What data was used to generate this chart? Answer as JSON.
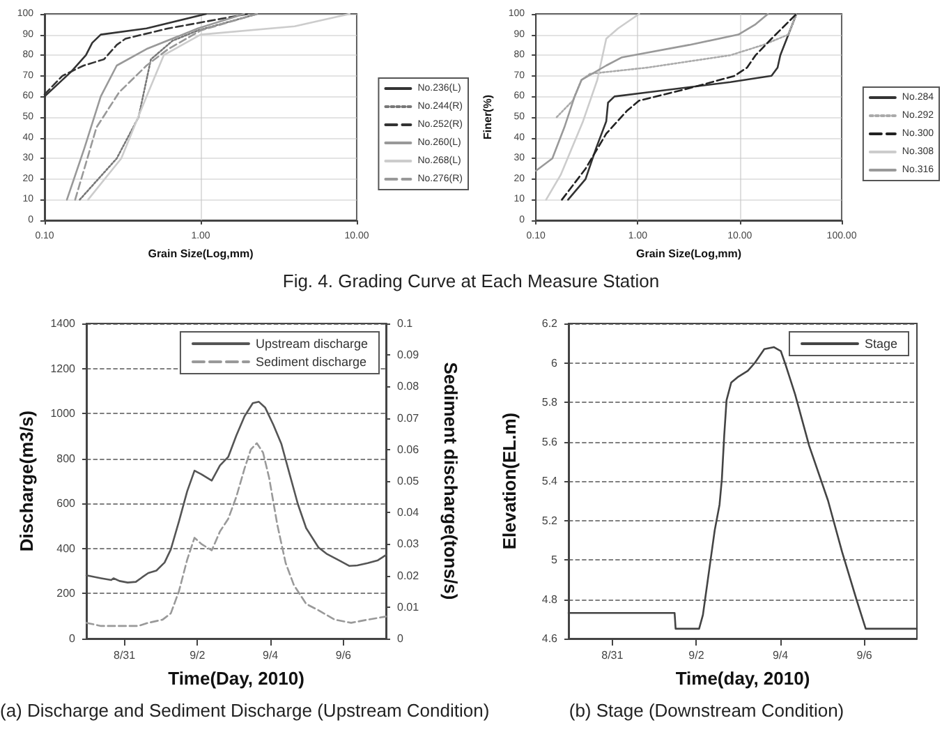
{
  "chart_data": [
    {
      "type": "line",
      "xlabel": "Grain Size(Log,mm)",
      "log": "x",
      "xlim": [
        0.1,
        10
      ],
      "xticks": [
        {
          "value": 0.1,
          "label": "0.10"
        },
        {
          "value": 1,
          "label": "1.00"
        },
        {
          "value": 10,
          "label": "10.00"
        }
      ],
      "ylim": [
        0,
        100
      ],
      "yticks": [
        0,
        10,
        20,
        30,
        40,
        50,
        60,
        70,
        80,
        90,
        100
      ],
      "grid": true,
      "legend": "right",
      "marker": "none",
      "annotations": [
        "Fig. 4. Grading Curve at Each Measure Station"
      ],
      "series": [
        {
          "name": "No.236(L)",
          "color": "#333333",
          "line_style": "solid",
          "x": [
            0.1,
            0.148,
            0.184,
            0.202,
            0.229,
            0.45,
            1.08
          ],
          "values": [
            60,
            72,
            80,
            86,
            90,
            93,
            100
          ]
        },
        {
          "name": "No.244(R)",
          "color": "#777777",
          "line_style": "dotted",
          "x": [
            0.168,
            0.29,
            0.4,
            0.48,
            0.66,
            0.96,
            2.3
          ],
          "values": [
            10,
            30,
            50,
            78,
            87,
            92,
            100
          ]
        },
        {
          "name": "No.252(R)",
          "color": "#333333",
          "line_style": "dashed",
          "x": [
            0.1,
            0.13,
            0.178,
            0.24,
            0.29,
            0.33,
            0.62,
            2
          ],
          "values": [
            61,
            70,
            75,
            78,
            85,
            88,
            93,
            100
          ]
        },
        {
          "name": "No.260(L)",
          "color": "#999999",
          "line_style": "solid",
          "x": [
            0.139,
            0.18,
            0.229,
            0.29,
            0.45,
            0.96,
            1.9
          ],
          "values": [
            10,
            35,
            60,
            75,
            83,
            93,
            100
          ]
        },
        {
          "name": "No.268(L)",
          "color": "#cccccc",
          "line_style": "solid",
          "x": [
            0.19,
            0.31,
            0.45,
            0.58,
            1,
            4,
            9
          ],
          "values": [
            10,
            30,
            60,
            80,
            90,
            94,
            100
          ]
        },
        {
          "name": "No.276(R)",
          "color": "#999999",
          "line_style": "dashed",
          "x": [
            0.157,
            0.215,
            0.3,
            0.45,
            0.62,
            1,
            2.3
          ],
          "values": [
            10,
            45,
            62,
            75,
            83,
            92,
            100
          ]
        }
      ]
    },
    {
      "type": "line",
      "xlabel": "Grain Size(Log,mm)",
      "ylabel": "Finer(%)",
      "log": "x",
      "xlim": [
        0.1,
        100
      ],
      "xticks": [
        {
          "value": 0.1,
          "label": "0.10"
        },
        {
          "value": 1,
          "label": "1.00"
        },
        {
          "value": 10,
          "label": "10.00"
        },
        {
          "value": 100,
          "label": "100.00"
        }
      ],
      "ylim": [
        0,
        100
      ],
      "yticks": [
        0,
        10,
        20,
        30,
        40,
        50,
        60,
        70,
        80,
        90,
        100
      ],
      "grid": true,
      "legend": "right",
      "marker": "none",
      "series": [
        {
          "name": "No.284",
          "color": "#333333",
          "line_style": "solid",
          "x": [
            0.207,
            0.307,
            0.39,
            0.49,
            0.51,
            0.59,
            1.24,
            8.1,
            20.5,
            23.5,
            25,
            36
          ],
          "values": [
            10,
            20,
            35,
            48,
            57,
            60,
            62,
            67,
            70,
            74,
            80,
            100
          ]
        },
        {
          "name": "No.292",
          "color": "#aaaaaa",
          "line_style": "dotted",
          "x": [
            0.16,
            0.23,
            0.28,
            0.34,
            1.24,
            8.1,
            17,
            30,
            36
          ],
          "values": [
            50,
            58,
            68,
            71,
            74,
            80,
            85,
            90,
            100
          ]
        },
        {
          "name": "No.300",
          "color": "#222222",
          "line_style": "dashed",
          "x": [
            0.18,
            0.307,
            0.49,
            0.78,
            1.03,
            3.2,
            8.9,
            11.8,
            14.3,
            20.5,
            36
          ],
          "values": [
            10,
            25,
            42,
            53,
            58,
            64,
            70,
            74,
            80,
            88,
            100
          ]
        },
        {
          "name": "No.308",
          "color": "#cccccc",
          "line_style": "solid",
          "x": [
            0.126,
            0.175,
            0.29,
            0.4,
            0.49,
            0.64,
            1.03
          ],
          "values": [
            10,
            22,
            48,
            68,
            88,
            93,
            100
          ]
        },
        {
          "name": "No.316",
          "color": "#999999",
          "line_style": "solid",
          "x": [
            0.1,
            0.145,
            0.19,
            0.24,
            0.28,
            0.49,
            0.7,
            3.2,
            9.7,
            14.3,
            18.9
          ],
          "values": [
            24,
            30,
            45,
            60,
            68,
            75,
            79,
            85,
            90,
            95,
            100
          ]
        }
      ]
    },
    {
      "type": "line",
      "xlabel": "Time(Day, 2010)",
      "ylabel": "Discharge(m3/s)",
      "y2label": "Sediment discharge(tons/s)",
      "xlim": [
        "2010-08-29T23:00",
        "2010-09-07T04:00"
      ],
      "xticks": [
        {
          "value": "2010-08-31",
          "label": "8/31"
        },
        {
          "value": "2010-09-02",
          "label": "9/2"
        },
        {
          "value": "2010-09-04",
          "label": "9/4"
        },
        {
          "value": "2010-09-06",
          "label": "9/6"
        }
      ],
      "ylim": [
        0,
        1400
      ],
      "yticks": [
        0,
        200,
        400,
        600,
        800,
        1000,
        1200,
        1400
      ],
      "y2lim": [
        0,
        0.1
      ],
      "y2ticks": [
        0,
        0.01,
        0.02,
        0.03,
        0.04,
        0.05,
        0.06,
        0.07,
        0.08,
        0.09,
        0.1
      ],
      "grid": "y",
      "legend": "top right",
      "marker": "none",
      "annotations": [
        "(a) Discharge and Sediment Discharge (Upstream Condition)"
      ],
      "series": [
        {
          "name": "Upstream discharge",
          "color": "#555555",
          "line_style": "solid",
          "x": [
            "2010-08-29T23:00",
            "2010-08-30T08:40",
            "2010-08-30T15:20",
            "2010-08-30T16:50",
            "2010-08-30T20:45",
            "2010-08-31T02:10",
            "2010-08-31T07:30",
            "2010-08-31T11:35",
            "2010-08-31T15:40",
            "2010-08-31T21:00",
            "2010-09-01T02:25",
            "2010-09-01T06:30",
            "2010-09-01T11:50",
            "2010-09-01T17:15",
            "2010-09-01T22:05",
            "2010-09-02T02:40",
            "2010-09-02T09:25",
            "2010-09-02T14:50",
            "2010-09-02T20:15",
            "2010-09-03T01:35",
            "2010-09-03T07:00",
            "2010-09-03T12:25",
            "2010-09-03T16:25",
            "2010-09-03T20:30",
            "2010-09-04T01:55",
            "2010-09-04T07:15",
            "2010-09-04T12:40",
            "2010-09-04T18:05",
            "2010-09-04T23:30",
            "2010-09-05T07:35",
            "2010-09-05T12:55",
            "2010-09-05T21:00",
            "2010-09-06T03:45",
            "2010-09-06T09:10",
            "2010-09-06T15:55",
            "2010-09-06T22:40",
            "2010-09-07T04:00"
          ],
          "values": [
            281,
            268,
            260,
            268,
            256,
            249,
            252,
            272,
            291,
            302,
            338,
            396,
            520,
            654,
            746,
            730,
            702,
            769,
            807,
            902,
            988,
            1046,
            1052,
            1027,
            950,
            864,
            730,
            597,
            491,
            405,
            377,
            348,
            323,
            325,
            335,
            348,
            371
          ]
        },
        {
          "name": "Sediment discharge",
          "color": "#999999",
          "line_style": "dashed",
          "axis": "y2",
          "x": [
            "2010-08-29T23:00",
            "2010-08-30T08:40",
            "2010-08-30T22:05",
            "2010-08-31T08:55",
            "2010-08-31T15:40",
            "2010-09-01T01:05",
            "2010-09-01T06:30",
            "2010-09-01T11:50",
            "2010-09-01T17:15",
            "2010-09-01T22:05",
            "2010-09-02T02:40",
            "2010-09-02T09:25",
            "2010-09-02T14:50",
            "2010-09-02T20:15",
            "2010-09-03T01:35",
            "2010-09-03T07:00",
            "2010-09-03T11:05",
            "2010-09-03T15:05",
            "2010-09-03T19:10",
            "2010-09-03T23:10",
            "2010-09-04T04:35",
            "2010-09-04T10:00",
            "2010-09-04T15:25",
            "2010-09-04T23:30",
            "2010-09-05T07:35",
            "2010-09-05T18:20",
            "2010-09-06T05:05",
            "2010-09-06T15:55",
            "2010-09-07T04:00"
          ],
          "values": [
            0.005,
            0.004,
            0.004,
            0.004,
            0.005,
            0.006,
            0.008,
            0.015,
            0.025,
            0.032,
            0.03,
            0.028,
            0.034,
            0.038,
            0.045,
            0.054,
            0.06,
            0.062,
            0.059,
            0.051,
            0.036,
            0.024,
            0.017,
            0.011,
            0.009,
            0.006,
            0.005,
            0.006,
            0.007
          ]
        }
      ]
    },
    {
      "type": "line",
      "xlabel": "Time(day, 2010)",
      "ylabel": "Elevation(EL.m)",
      "xlim": [
        "2010-08-29T23:00",
        "2010-09-07T06:00"
      ],
      "xticks": [
        {
          "value": "2010-08-31",
          "label": "8/31"
        },
        {
          "value": "2010-09-02",
          "label": "9/2"
        },
        {
          "value": "2010-09-04",
          "label": "9/4"
        },
        {
          "value": "2010-09-06",
          "label": "9/6"
        }
      ],
      "ylim": [
        4.6,
        6.2
      ],
      "yticks": [
        4.6,
        4.8,
        5,
        5.2,
        5.4,
        5.6,
        5.8,
        6,
        6.2
      ],
      "grid": "y",
      "legend": "top right",
      "marker": "none",
      "annotations": [
        "(b) Stage (Downstream Condition)"
      ],
      "series": [
        {
          "name": "Stage",
          "color": "#444444",
          "line_style": "solid",
          "x": [
            "2010-08-29T23:00",
            "2010-09-01T11:35",
            "2010-09-01T12:10",
            "2010-09-02T01:35",
            "2010-09-02T03:45",
            "2010-09-02T07:50",
            "2010-09-02T10:30",
            "2010-09-02T13:15",
            "2010-09-02T14:35",
            "2010-09-02T15:55",
            "2010-09-02T17:15",
            "2010-09-02T19:55",
            "2010-09-03T00:00",
            "2010-09-03T05:25",
            "2010-09-03T09:25",
            "2010-09-03T14:50",
            "2010-09-03T20:15",
            "2010-09-04T00:15",
            "2010-09-04T03:00",
            "2010-09-04T08:25",
            "2010-09-04T16:25",
            "2010-09-05T03:15",
            "2010-09-05T11:15",
            "2010-09-05T19:25",
            "2010-09-06T00:45",
            "2010-09-07T06:00"
          ],
          "values": [
            4.73,
            4.73,
            4.65,
            4.65,
            4.72,
            4.98,
            5.15,
            5.28,
            5.41,
            5.63,
            5.81,
            5.9,
            5.93,
            5.96,
            6.0,
            6.07,
            6.08,
            6.06,
            5.99,
            5.84,
            5.58,
            5.3,
            5.04,
            4.8,
            4.65,
            4.65
          ]
        }
      ]
    }
  ]
}
